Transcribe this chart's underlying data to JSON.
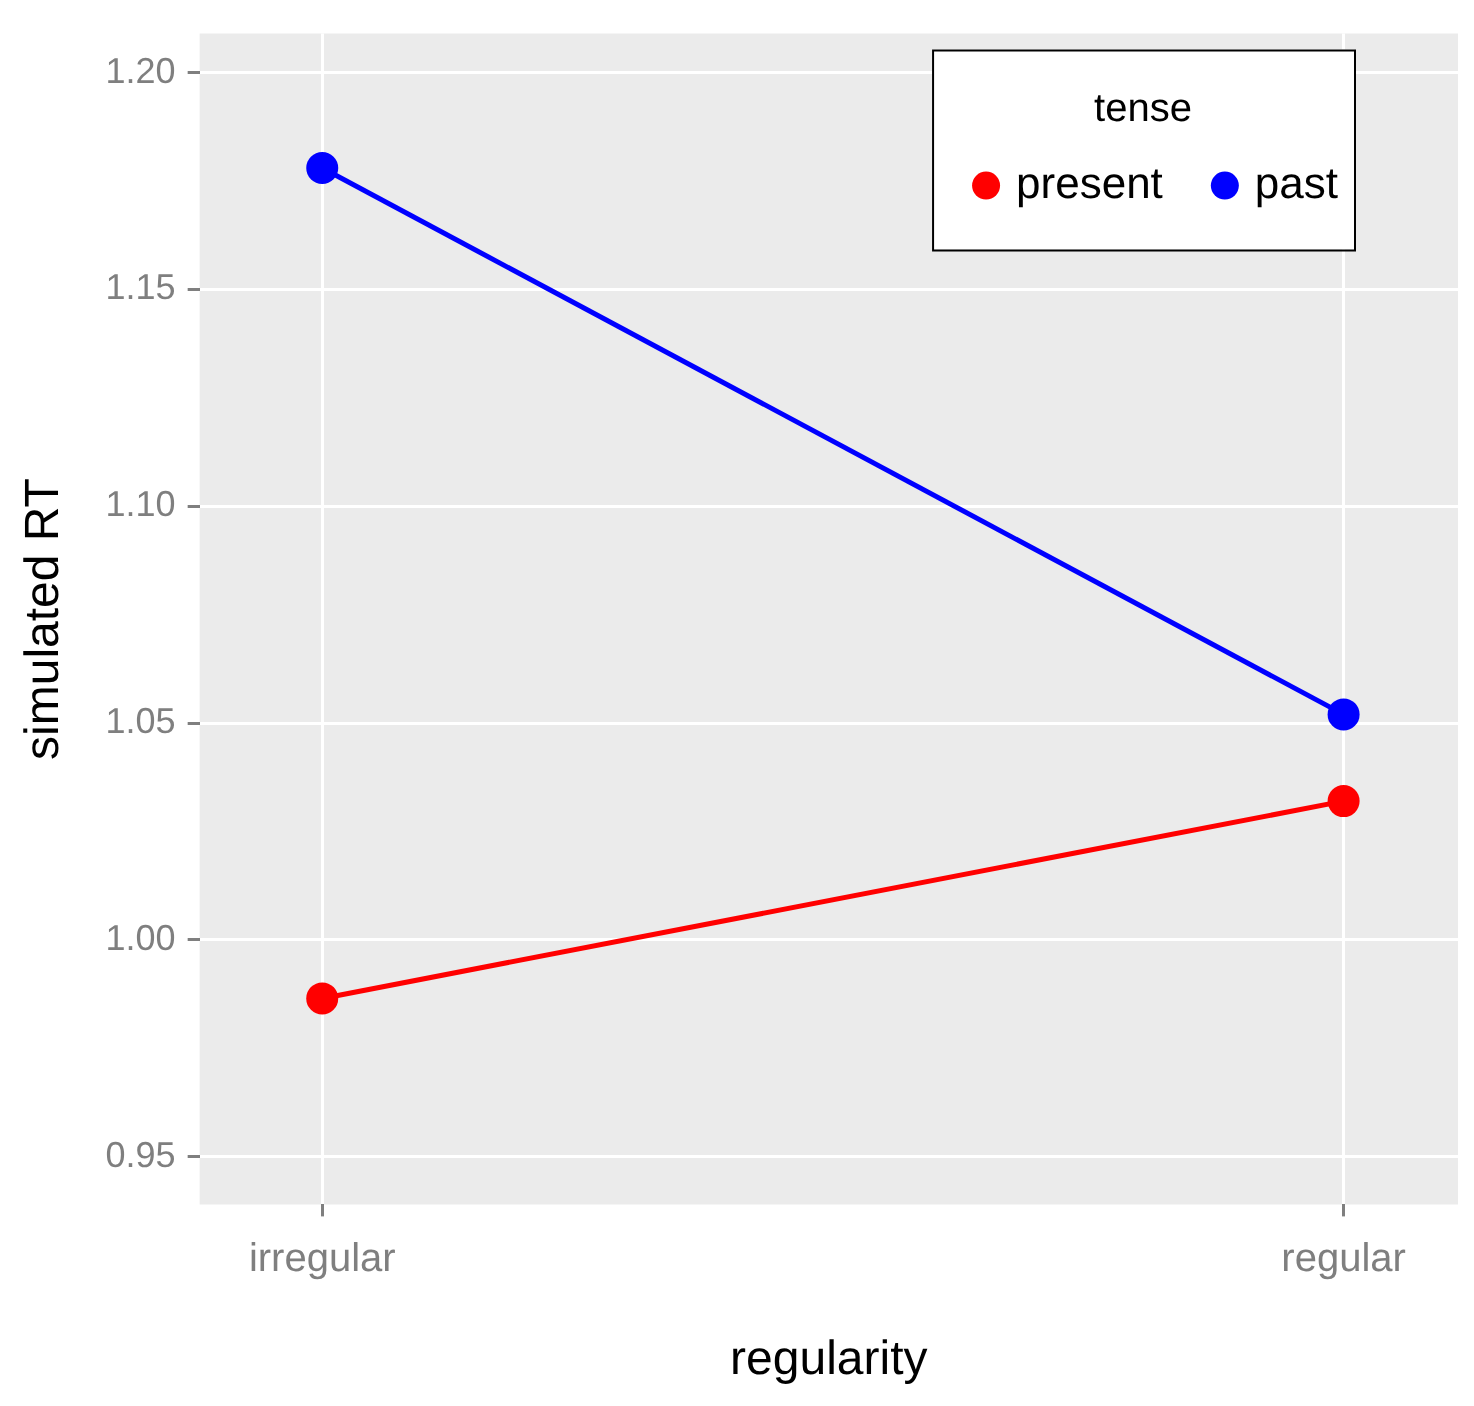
{
  "chart_data": {
    "type": "line",
    "xlabel": "regularity",
    "ylabel": "simulated RT",
    "legend_title": "tense",
    "categories": [
      "irregular",
      "regular"
    ],
    "series": [
      {
        "name": "present",
        "color": "#ff0000",
        "values": [
          0.9865,
          1.032
        ]
      },
      {
        "name": "past",
        "color": "#0000ff",
        "values": [
          1.178,
          1.052
        ]
      }
    ],
    "ylim": [
      0.939,
      1.209
    ],
    "yticks": [
      0.95,
      {
        "value": 1,
        "label": "1.00"
      },
      1.05,
      {
        "value": 1.1,
        "label": "1.10"
      },
      1.15,
      {
        "value": 1.2,
        "label": "1.20"
      }
    ],
    "grid": true,
    "legend": "top right",
    "marker": "circle",
    "line_style": "solid"
  }
}
